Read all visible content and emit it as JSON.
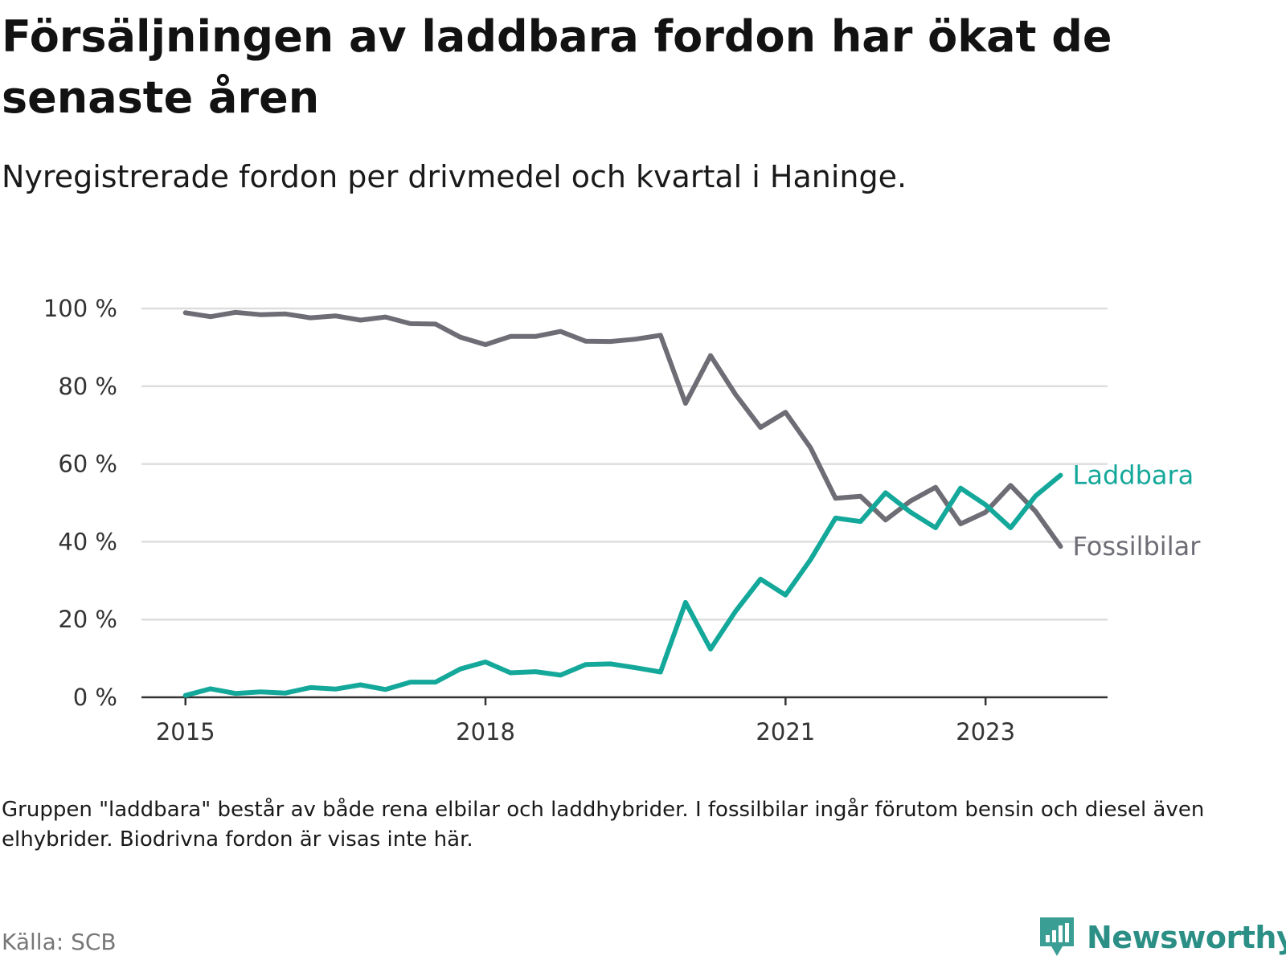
{
  "title": "Försäljningen av laddbara fordon har ökat de senaste åren",
  "subtitle": "Nyregistrerade fordon per drivmedel och kvartal i Haninge.",
  "note": "Gruppen \"laddbara\" består av både rena elbilar och laddhybrider. I fossilbilar ingår förutom bensin och diesel även elhybrider. Biodrivna fordon är visas inte här.",
  "source": "Källa: SCB",
  "brand": "Newsworthy",
  "colors": {
    "laddbara": "#14a89a",
    "fossil": "#6e6d75",
    "grid": "#dddddd",
    "axis": "#333333",
    "brand": "#2b8f86"
  },
  "chart_data": {
    "type": "line",
    "x_start": 2015.0,
    "x_step": 0.25,
    "xlim": [
      2014.56,
      2024.22
    ],
    "ylim": [
      0,
      100
    ],
    "y_ticks": [
      0,
      20,
      40,
      60,
      80,
      100
    ],
    "y_tick_labels": [
      "0 %",
      "20 %",
      "40 %",
      "60 %",
      "80 %",
      "100 %"
    ],
    "x_ticks": [
      2015,
      2018,
      2021,
      2023
    ],
    "x_tick_labels": [
      "2015",
      "2018",
      "2021",
      "2023"
    ],
    "grid": true,
    "series": [
      {
        "name": "Laddbara",
        "key": "laddbara",
        "values": [
          0.5,
          2.2,
          1.0,
          1.4,
          1.1,
          2.5,
          2.1,
          3.2,
          2.0,
          3.9,
          3.9,
          7.3,
          9.1,
          6.3,
          6.6,
          5.7,
          8.4,
          8.6,
          7.6,
          6.5,
          24.4,
          12.4,
          22.1,
          30.4,
          26.3,
          35.4,
          46.1,
          45.2,
          52.6,
          47.6,
          43.6,
          53.8,
          49.5,
          43.6,
          51.8,
          57.1
        ]
      },
      {
        "name": "Fossilbilar",
        "key": "fossil",
        "values": [
          98.9,
          97.9,
          99.0,
          98.4,
          98.6,
          97.6,
          98.1,
          97.0,
          97.8,
          96.1,
          96.0,
          92.6,
          90.7,
          92.8,
          92.8,
          94.1,
          91.6,
          91.5,
          92.1,
          93.1,
          75.6,
          87.9,
          77.9,
          69.4,
          73.3,
          64.2,
          51.2,
          51.7,
          45.6,
          50.5,
          54.0,
          44.6,
          47.6,
          54.5,
          47.8,
          38.8
        ]
      }
    ]
  }
}
